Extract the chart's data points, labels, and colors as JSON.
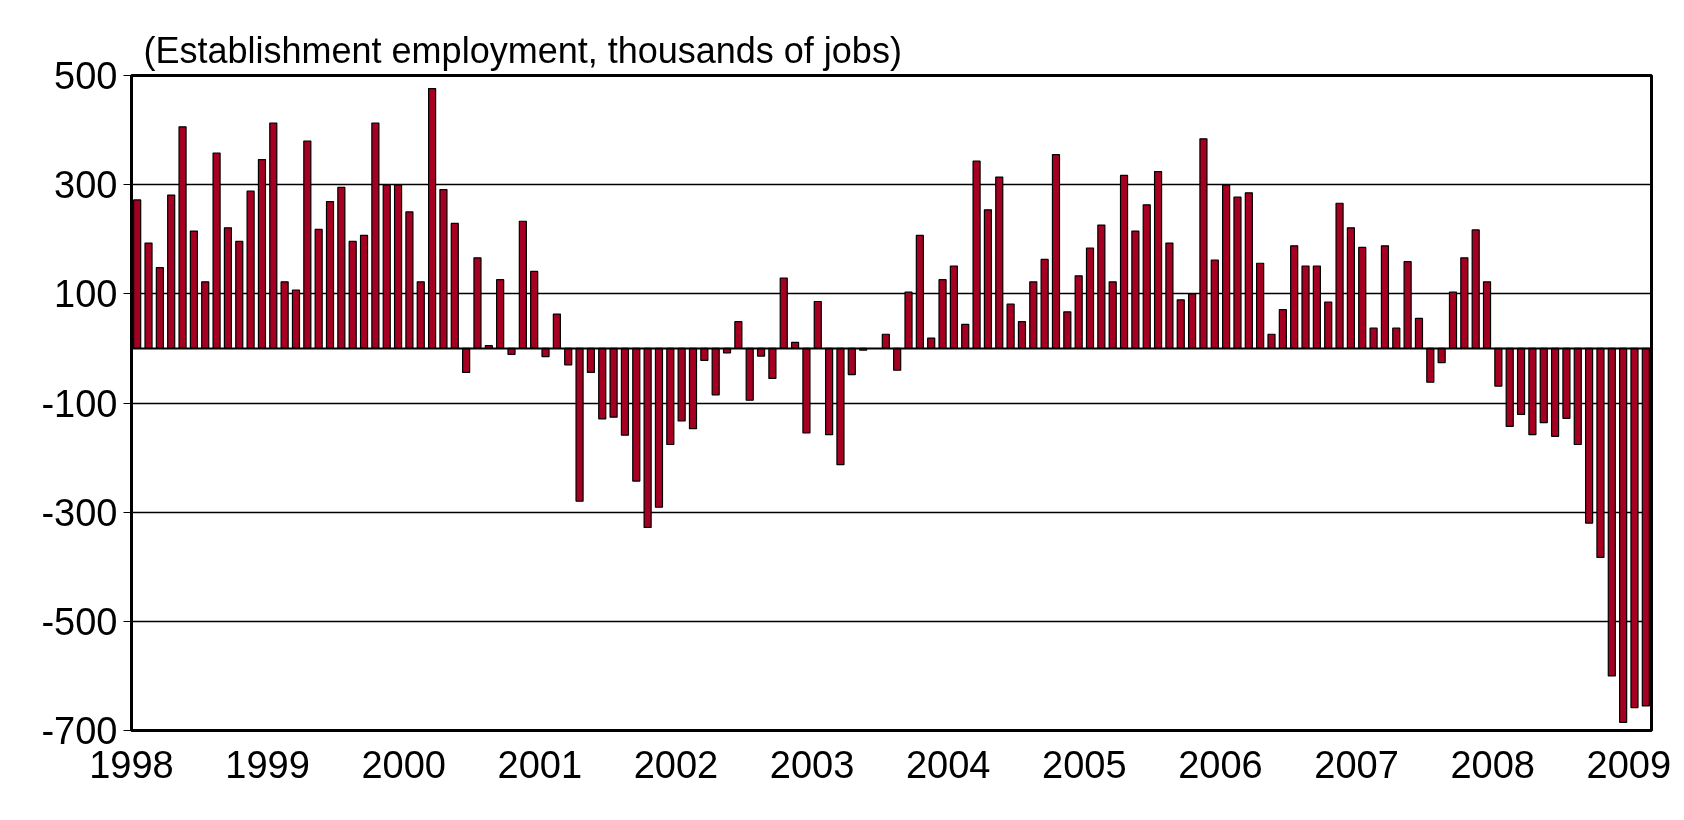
{
  "chart_data": {
    "type": "bar",
    "title": "(Establishment employment, thousands of jobs)",
    "x": [
      "1998-01",
      "1998-02",
      "1998-03",
      "1998-04",
      "1998-05",
      "1998-06",
      "1998-07",
      "1998-08",
      "1998-09",
      "1998-10",
      "1998-11",
      "1998-12",
      "1999-01",
      "1999-02",
      "1999-03",
      "1999-04",
      "1999-05",
      "1999-06",
      "1999-07",
      "1999-08",
      "1999-09",
      "1999-10",
      "1999-11",
      "1999-12",
      "2000-01",
      "2000-02",
      "2000-03",
      "2000-04",
      "2000-05",
      "2000-06",
      "2000-07",
      "2000-08",
      "2000-09",
      "2000-10",
      "2000-11",
      "2000-12",
      "2001-01",
      "2001-02",
      "2001-03",
      "2001-04",
      "2001-05",
      "2001-06",
      "2001-07",
      "2001-08",
      "2001-09",
      "2001-10",
      "2001-11",
      "2001-12",
      "2002-01",
      "2002-02",
      "2002-03",
      "2002-04",
      "2002-05",
      "2002-06",
      "2002-07",
      "2002-08",
      "2002-09",
      "2002-10",
      "2002-11",
      "2002-12",
      "2003-01",
      "2003-02",
      "2003-03",
      "2003-04",
      "2003-05",
      "2003-06",
      "2003-07",
      "2003-08",
      "2003-09",
      "2003-10",
      "2003-11",
      "2003-12",
      "2004-01",
      "2004-02",
      "2004-03",
      "2004-04",
      "2004-05",
      "2004-06",
      "2004-07",
      "2004-08",
      "2004-09",
      "2004-10",
      "2004-11",
      "2004-12",
      "2005-01",
      "2005-02",
      "2005-03",
      "2005-04",
      "2005-05",
      "2005-06",
      "2005-07",
      "2005-08",
      "2005-09",
      "2005-10",
      "2005-11",
      "2005-12",
      "2006-01",
      "2006-02",
      "2006-03",
      "2006-04",
      "2006-05",
      "2006-06",
      "2006-07",
      "2006-08",
      "2006-09",
      "2006-10",
      "2006-11",
      "2006-12",
      "2007-01",
      "2007-02",
      "2007-03",
      "2007-04",
      "2007-05",
      "2007-06",
      "2007-07",
      "2007-08",
      "2007-09",
      "2007-10",
      "2007-11",
      "2007-12",
      "2008-01",
      "2008-02",
      "2008-03",
      "2008-04",
      "2008-05",
      "2008-06",
      "2008-07",
      "2008-08",
      "2008-09",
      "2008-10",
      "2008-11",
      "2008-12",
      "2009-01",
      "2009-02"
    ],
    "values": [
      272,
      193,
      148,
      281,
      406,
      215,
      122,
      358,
      221,
      196,
      288,
      346,
      413,
      122,
      107,
      380,
      218,
      269,
      295,
      196,
      207,
      413,
      299,
      299,
      250,
      122,
      476,
      291,
      229,
      -44,
      166,
      5,
      126,
      -11,
      233,
      141,
      -15,
      63,
      -30,
      -280,
      -44,
      -129,
      -126,
      -159,
      -243,
      -328,
      -291,
      -176,
      -133,
      -147,
      -22,
      -85,
      -8,
      49,
      -95,
      -14,
      -55,
      129,
      11,
      -155,
      86,
      -158,
      -213,
      -48,
      -3,
      null,
      26,
      -40,
      103,
      207,
      19,
      126,
      151,
      44,
      343,
      254,
      314,
      81,
      49,
      122,
      163,
      355,
      67,
      133,
      184,
      226,
      122,
      317,
      215,
      263,
      324,
      193,
      89,
      100,
      384,
      162,
      299,
      277,
      285,
      156,
      26,
      71,
      188,
      151,
      151,
      85,
      266,
      221,
      185,
      37,
      188,
      37,
      159,
      55,
      -62,
      -26,
      103,
      166,
      217,
      122,
      -69,
      -143,
      -121,
      -158,
      -136,
      -161,
      -128,
      -176,
      -320,
      -383,
      -600,
      -685,
      -658,
      -655
    ],
    "color": "#a50021",
    "xlim": [
      "1998-01",
      "2009-03"
    ],
    "xticks": [
      "1998",
      "1999",
      "2000",
      "2001",
      "2002",
      "2003",
      "2004",
      "2005",
      "2006",
      "2007",
      "2008",
      "2009"
    ],
    "ylim": [
      -700,
      500
    ],
    "yticks": [
      -700,
      -500,
      -300,
      -100,
      100,
      300,
      500
    ],
    "grid": "y",
    "ref_lines": [
      {
        "axis": "y",
        "value": 0,
        "color": "#000000"
      }
    ]
  }
}
